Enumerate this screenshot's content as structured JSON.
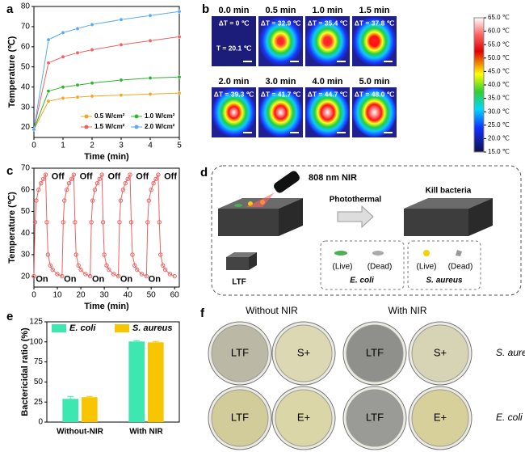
{
  "panel_labels": [
    "a",
    "b",
    "c",
    "d",
    "e",
    "f"
  ],
  "chart_data": [
    {
      "type": "line",
      "x": [
        0,
        0.5,
        1,
        1.5,
        2,
        3,
        4,
        5
      ],
      "series": [
        {
          "name": "0.5 W/cm²",
          "color": "#f5a623",
          "values": [
            19,
            33,
            34.5,
            35,
            35.5,
            36,
            36.5,
            37
          ]
        },
        {
          "name": "1.0 W/cm²",
          "color": "#2db52d",
          "values": [
            19,
            38,
            40,
            41,
            42,
            43.5,
            44.5,
            45
          ]
        },
        {
          "name": "1.5 W/cm²",
          "color": "#f06060",
          "values": [
            19,
            52,
            55,
            57,
            58.5,
            61,
            63,
            65
          ]
        },
        {
          "name": "2.0 W/cm²",
          "color": "#5aaaf0",
          "values": [
            19,
            63.5,
            67,
            69,
            71,
            73.5,
            75.5,
            77.5
          ]
        }
      ],
      "xlim": [
        0,
        5
      ],
      "ylim": [
        15,
        80
      ],
      "xticks": [
        0,
        1,
        2,
        3,
        4,
        5
      ],
      "yticks": [
        20,
        30,
        40,
        50,
        60,
        70,
        80
      ],
      "xlabel": "Time (min)",
      "ylabel": "Temperature (℃)"
    },
    {
      "type": "line",
      "x": [
        0,
        0.5,
        1,
        2,
        3,
        4,
        5,
        5.5,
        6,
        7,
        8,
        10,
        12,
        12.5,
        13,
        14,
        15,
        16,
        17,
        17.5,
        18,
        19,
        20,
        22,
        24,
        24.5,
        25,
        26,
        27,
        28,
        29,
        29.5,
        30,
        31,
        32,
        34,
        36,
        36.5,
        37,
        38,
        39,
        40,
        41,
        41.5,
        42,
        43,
        44,
        46,
        48,
        48.5,
        49,
        50,
        51,
        52,
        53,
        53.5,
        54,
        55,
        56,
        58,
        60
      ],
      "series": [
        {
          "color": "#f06060",
          "values": [
            20,
            45,
            55,
            60,
            63,
            65,
            67,
            45,
            30,
            25,
            23,
            21,
            20,
            45,
            55,
            60,
            63,
            65,
            67,
            45,
            30,
            25,
            23,
            21,
            20,
            45,
            55,
            60,
            63,
            65,
            67,
            45,
            30,
            25,
            23,
            21,
            20,
            45,
            55,
            60,
            63,
            65,
            67,
            45,
            30,
            25,
            23,
            21,
            20,
            45,
            55,
            60,
            63,
            65,
            67,
            45,
            30,
            25,
            23,
            21,
            20
          ]
        }
      ],
      "annotations": [
        "Off",
        "Off",
        "Off",
        "Off",
        "Off",
        "On",
        "On",
        "On",
        "On",
        "On"
      ],
      "xlim": [
        0,
        62
      ],
      "ylim": [
        15,
        70
      ],
      "xticks": [
        0,
        10,
        20,
        30,
        40,
        50,
        60
      ],
      "yticks": [
        20,
        30,
        40,
        50,
        60,
        70
      ],
      "xlabel": "Time (min)",
      "ylabel": "Temperature (℃)"
    },
    {
      "type": "bar",
      "categories": [
        "Without-NIR",
        "With NIR"
      ],
      "series": [
        {
          "name": "E. coli",
          "color": "#3de8b0",
          "values": [
            29,
            100.5
          ],
          "errors": [
            3,
            1
          ]
        },
        {
          "name": "S. aureus",
          "color": "#f7c600",
          "values": [
            31,
            99.5
          ],
          "errors": [
            1,
            1
          ]
        }
      ],
      "ylim": [
        0,
        125
      ],
      "yticks": [
        0,
        25,
        50,
        75,
        100,
        125
      ],
      "ylabel": "Bactericidal ratio (%)"
    }
  ],
  "thermal_images": {
    "tiles": [
      {
        "time": "0.0 min",
        "delta": "ΔT = 0 ℃"
      },
      {
        "time": "0.5 min",
        "delta": "ΔT = 32.9 ℃"
      },
      {
        "time": "1.0 min",
        "delta": "ΔT = 35.4 ℃"
      },
      {
        "time": "1.5 min",
        "delta": "ΔT = 37.8 ℃"
      },
      {
        "time": "2.0 min",
        "delta": "ΔT = 39.3 ℃"
      },
      {
        "time": "3.0 min",
        "delta": "ΔT = 41.7 ℃"
      },
      {
        "time": "4.0 min",
        "delta": "ΔT = 44.7 ℃"
      },
      {
        "time": "5.0 min",
        "delta": "ΔT = 48.0 ℃"
      }
    ],
    "initial": "T = 20.1 ℃",
    "colorbar_lim": [
      15,
      65
    ],
    "colorbar_ticks": [
      {
        "value": 15,
        "label": "15.0 ℃"
      },
      {
        "value": 20,
        "label": "20.0 ℃"
      },
      {
        "value": 25,
        "label": "25.0 ℃"
      },
      {
        "value": 30,
        "label": "30.0 ℃"
      },
      {
        "value": 35,
        "label": "35.0 ℃"
      },
      {
        "value": 40,
        "label": "40.0 ℃"
      },
      {
        "value": 45,
        "label": "45.0 ℃"
      },
      {
        "value": 50,
        "label": "50.0 ℃"
      },
      {
        "value": 55,
        "label": "55.0 ℃"
      },
      {
        "value": 60,
        "label": "60.0 ℃"
      },
      {
        "value": 65,
        "label": "65.0 ℃"
      }
    ]
  },
  "diagram": {
    "laser": "808 nm NIR",
    "process": "Photothermal",
    "result": "Kill bacteria",
    "material": "LTF",
    "ecoli": {
      "live": "(Live)",
      "dead": "(Dead)",
      "name": "E. coli"
    },
    "saureus": {
      "live": "(Live)",
      "dead": "(Dead)",
      "name": "S. aureus"
    }
  },
  "photos": {
    "columns": [
      "Without NIR",
      "With NIR"
    ],
    "rows": [
      "S. aureus",
      "E. coli"
    ],
    "dishes": [
      [
        "LTF",
        "S+",
        "LTF",
        "S+"
      ],
      [
        "LTF",
        "E+",
        "LTF",
        "E+"
      ]
    ]
  }
}
